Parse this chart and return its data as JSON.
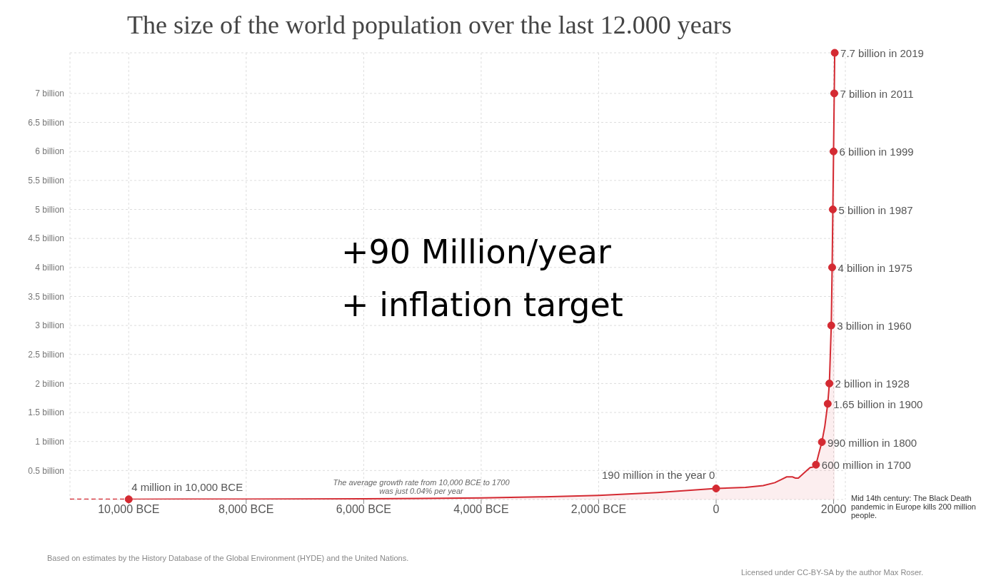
{
  "chart_data": {
    "type": "area",
    "title": "The size of the world population over the last 12.000 years",
    "series": [
      {
        "color": "#d42a32",
        "x": [
          -10000,
          -9000,
          -8000,
          -7000,
          -6000,
          -5000,
          -4000,
          -3000,
          -2000,
          -1000,
          0,
          500,
          800,
          1000,
          1100,
          1200,
          1300,
          1350,
          1400,
          1500,
          1600,
          1650,
          1700,
          1750,
          1800,
          1850,
          1900,
          1928,
          1960,
          1975,
          1987,
          1999,
          2011,
          2019
        ],
        "values": [
          0.004,
          0.005,
          0.006,
          0.008,
          0.012,
          0.018,
          0.028,
          0.045,
          0.072,
          0.12,
          0.19,
          0.21,
          0.24,
          0.29,
          0.34,
          0.39,
          0.39,
          0.37,
          0.37,
          0.46,
          0.55,
          0.56,
          0.6,
          0.8,
          0.99,
          1.26,
          1.65,
          2,
          3,
          4,
          5,
          6,
          7,
          7.7
        ]
      },
      {
        "type": "line",
        "line_style": "dashed",
        "color": "#d42a32",
        "x": [
          -11000,
          -10000
        ],
        "values": [
          0.004,
          0.004
        ]
      },
      {
        "type": "scatter",
        "marker": "circle",
        "color": "#d42a32",
        "x": [
          -10000,
          0,
          1700,
          1800,
          1900,
          1928,
          1960,
          1975,
          1987,
          1999,
          2011,
          2019
        ],
        "values": [
          0.004,
          0.19,
          0.6,
          0.99,
          1.65,
          2,
          3,
          4,
          5,
          6,
          7,
          7.7
        ]
      }
    ],
    "xlim": [
      -11000,
      2200
    ],
    "xticks": [
      {
        "value": -10000,
        "label": "10,000 BCE"
      },
      {
        "value": -8000,
        "label": "8,000 BCE"
      },
      {
        "value": -6000,
        "label": "6,000 BCE"
      },
      {
        "value": -4000,
        "label": "4,000 BCE"
      },
      {
        "value": -2000,
        "label": "2,000 BCE"
      },
      0,
      2000
    ],
    "ylim": [
      0,
      7.7
    ],
    "yticks": [
      {
        "value": 0.5,
        "label": "0.5 billion"
      },
      {
        "value": 1,
        "label": "1 billion"
      },
      {
        "value": 1.5,
        "label": "1.5 billion"
      },
      {
        "value": 2,
        "label": "2 billion"
      },
      {
        "value": 2.5,
        "label": "2.5 billion"
      },
      {
        "value": 3,
        "label": "3 billion"
      },
      {
        "value": 3.5,
        "label": "3.5 billion"
      },
      {
        "value": 4,
        "label": "4 billion"
      },
      {
        "value": 4.5,
        "label": "4.5 billion"
      },
      {
        "value": 5,
        "label": "5 billion"
      },
      {
        "value": 5.5,
        "label": "5.5 billion"
      },
      {
        "value": 6,
        "label": "6 billion"
      },
      {
        "value": 6.5,
        "label": "6.5 billion"
      },
      {
        "value": 7,
        "label": "7 billion"
      }
    ],
    "grid": true,
    "annotations": [
      "+90 Million/year",
      "+ inflation target",
      "The average growth rate from 10,000 BCE to 1700 was just 0.04% per year",
      "Mid 14th century: The Black Death pandemic in Europe kills 200 million people.",
      "Based on estimates by the History Database of the Global Environment (HYDE) and the United Nations.",
      "Licensed under CC-BY-SA by the author Max Roser.",
      {
        "text": "4 million in 10,000 BCE",
        "x": -10000,
        "y": 0.004
      },
      {
        "text": "190 million in the year 0",
        "x": 0,
        "y": 0.19
      },
      {
        "text": "600 million in 1700",
        "x": 1700,
        "y": 0.6
      },
      {
        "text": "990 million in 1800",
        "x": 1800,
        "y": 0.99
      },
      {
        "text": "1.65 billion in 1900",
        "x": 1900,
        "y": 1.65
      },
      {
        "text": "2 billion in 1928",
        "x": 1928,
        "y": 2
      },
      {
        "text": "3 billion in 1960",
        "x": 1960,
        "y": 3
      },
      {
        "text": "4 billion in 1975",
        "x": 1975,
        "y": 4
      },
      {
        "text": "5 billion in 1987",
        "x": 1987,
        "y": 5
      },
      {
        "text": "6 billion in 1999",
        "x": 1999,
        "y": 6
      },
      {
        "text": "7 billion in 2011",
        "x": 2011,
        "y": 7
      },
      {
        "text": "7.7 billion in 2019",
        "x": 2019,
        "y": 7.7
      }
    ]
  }
}
